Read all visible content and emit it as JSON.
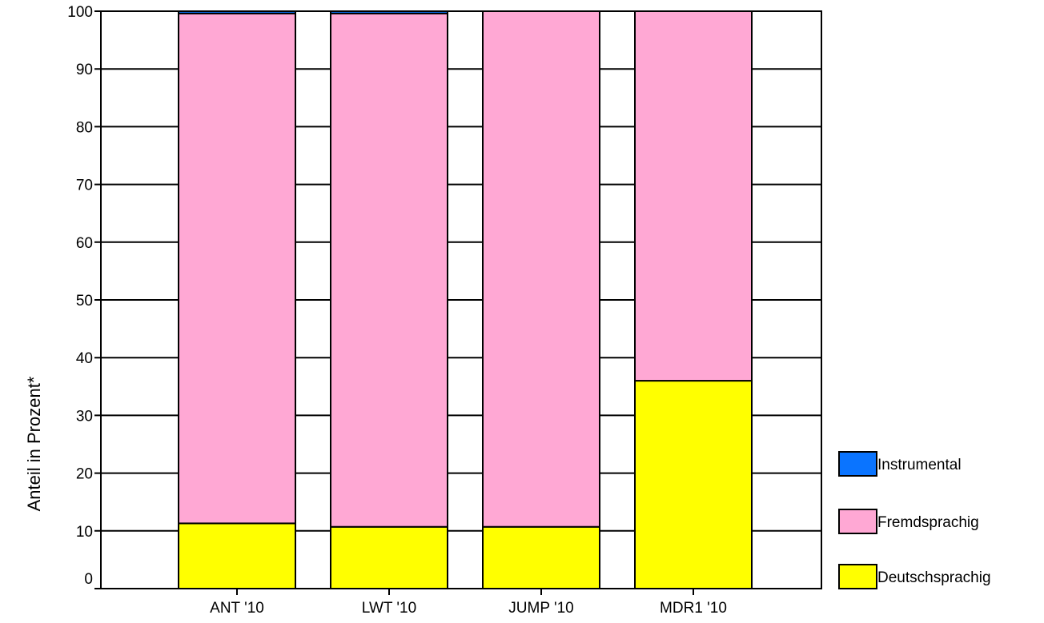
{
  "chart_data": {
    "type": "bar",
    "stacked": true,
    "categories": [
      "ANT '10",
      "LWT '10",
      "JUMP '10",
      "MDR1 '10"
    ],
    "series": [
      {
        "name": "Deutschsprachig",
        "color": "#ffff00",
        "values": [
          11.3,
          10.7,
          10.7,
          36.0
        ]
      },
      {
        "name": "Fremdsprachig",
        "color": "#ffa8d4",
        "values": [
          88.3,
          88.9,
          89.3,
          64.0
        ]
      },
      {
        "name": "Instrumental",
        "color": "#0a74ff",
        "values": [
          0.4,
          0.4,
          0.0,
          0.0
        ]
      }
    ],
    "ylabel": "Anteil in Prozent*",
    "xlabel": "",
    "ylim": [
      0,
      100
    ],
    "yticks": [
      "0",
      "10",
      "20",
      "30",
      "40",
      "50",
      "60",
      "70",
      "80",
      "90",
      "100"
    ],
    "grid": true,
    "legend": {
      "placement": "right",
      "order": [
        "Instrumental",
        "Fremdsprachig",
        "Deutschsprachig"
      ]
    }
  }
}
